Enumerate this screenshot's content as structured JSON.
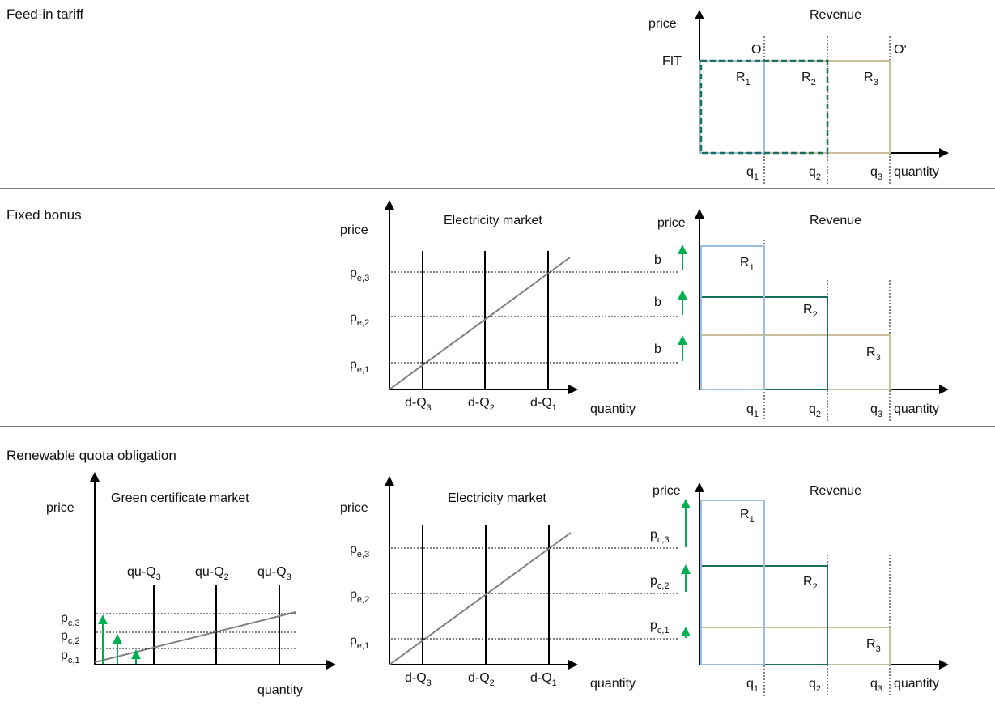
{
  "colors": {
    "r1": "#9ebede",
    "r2": "#196f5c",
    "r3": "#c9bf9a",
    "green": "#00b050",
    "curve": "#808080"
  },
  "labels": {
    "price": "price",
    "quantity": "quantity",
    "revenue": "Revenue",
    "electricity_market": "Electricity market",
    "green_certificate_market": "Green certificate market",
    "fit": "FIT",
    "o": "O",
    "o_prime": "O‘",
    "bonus": "b"
  },
  "sections": [
    {
      "id": "fit",
      "title": "Feed-in tariff"
    },
    {
      "id": "bonus",
      "title": "Fixed bonus"
    },
    {
      "id": "quota",
      "title": "Renewable quota obligation"
    }
  ],
  "revenue": {
    "boxes": [
      {
        "main": "R",
        "sub": "1"
      },
      {
        "main": "R",
        "sub": "2"
      },
      {
        "main": "R",
        "sub": "3"
      }
    ],
    "q_ticks": [
      {
        "main": "q",
        "sub": "1"
      },
      {
        "main": "q",
        "sub": "2"
      },
      {
        "main": "q",
        "sub": "3"
      }
    ]
  },
  "electricity": {
    "price_ticks": [
      {
        "main": "p",
        "sub": "e,3"
      },
      {
        "main": "p",
        "sub": "e,2"
      },
      {
        "main": "p",
        "sub": "e,1"
      }
    ],
    "quantity_ticks": [
      {
        "main": "d-Q",
        "sub": "3"
      },
      {
        "main": "d-Q",
        "sub": "2"
      },
      {
        "main": "d-Q",
        "sub": "1"
      }
    ]
  },
  "certificate": {
    "price_ticks": [
      {
        "main": "p",
        "sub": "c,3"
      },
      {
        "main": "p",
        "sub": "c,2"
      },
      {
        "main": "p",
        "sub": "c,1"
      }
    ],
    "quantity_ticks": [
      {
        "main": "qu-Q",
        "sub": "3"
      },
      {
        "main": "qu-Q",
        "sub": "2"
      },
      {
        "main": "qu-Q",
        "sub": "3"
      }
    ]
  }
}
